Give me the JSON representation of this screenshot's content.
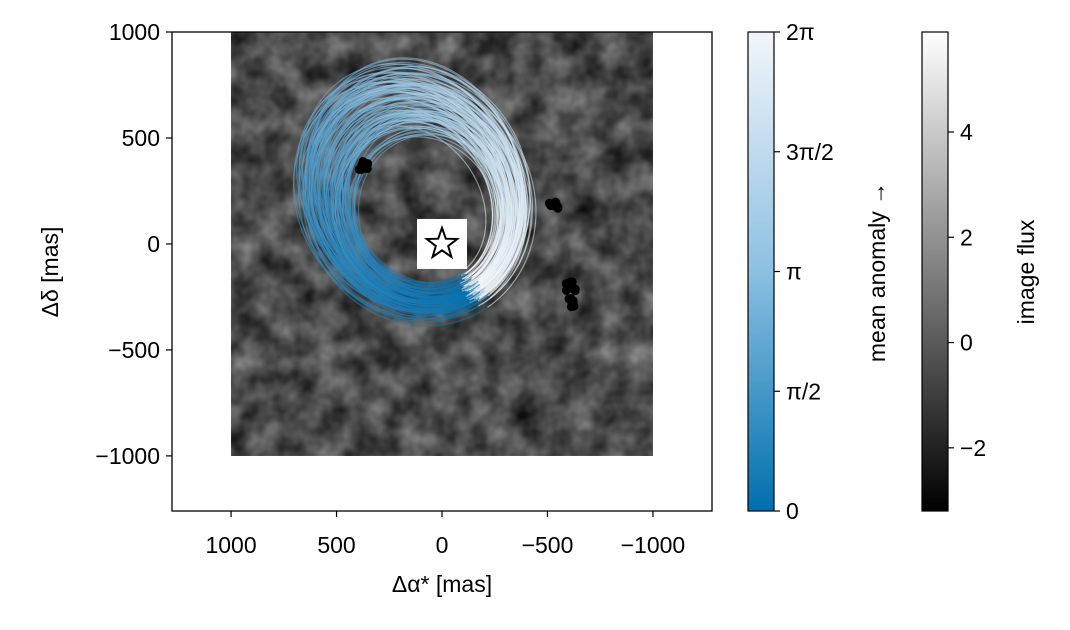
{
  "chart_data": {
    "type": "scatter",
    "xlabel": "Δα* [mas]",
    "ylabel": "Δδ [mas]",
    "x_reversed": true,
    "xlim": [
      1280,
      -1280
    ],
    "ylim": [
      -1260,
      1000
    ],
    "x_ticks": [
      {
        "value": 1000,
        "label": "1000"
      },
      {
        "value": 500,
        "label": "500"
      },
      {
        "value": 0,
        "label": "0"
      },
      {
        "value": -500,
        "label": "−500"
      },
      {
        "value": -1000,
        "label": "−1000"
      }
    ],
    "y_ticks": [
      {
        "value": 1000,
        "label": "1000"
      },
      {
        "value": 500,
        "label": "500"
      },
      {
        "value": 0,
        "label": "0"
      },
      {
        "value": -500,
        "label": "−500"
      },
      {
        "value": -1000,
        "label": "−1000"
      }
    ],
    "image_extent": {
      "x": [
        1000,
        -1000
      ],
      "y": [
        -1000,
        1000
      ]
    },
    "star": {
      "x": 0,
      "y": 0
    },
    "orbit_colormap": {
      "low": "#0a72b0",
      "mid": "#7fb7dc",
      "high": "#f5f8fb"
    },
    "orbits_reference": {
      "a": 420,
      "e": 0.45,
      "focus": [
        0,
        0
      ],
      "periapsis_angle_deg": -118,
      "count": 120
    },
    "observation_clusters": [
      {
        "x": 375,
        "y": 370
      },
      {
        "x": -525,
        "y": 185
      },
      {
        "x": -610,
        "y": -200
      },
      {
        "x": -615,
        "y": -275
      }
    ],
    "colorbars": [
      {
        "label": "mean anomaly →",
        "colormap": [
          "#006fad",
          "#8cc0e2",
          "#f2f6fa"
        ],
        "range": [
          0,
          6.2832
        ],
        "ticks": [
          {
            "value": 0,
            "label": "0"
          },
          {
            "value": 1.5708,
            "label": "π/2"
          },
          {
            "value": 3.1416,
            "label": "π"
          },
          {
            "value": 4.7124,
            "label": "3π/2"
          },
          {
            "value": 6.2832,
            "label": "2π"
          }
        ]
      },
      {
        "label": "image flux",
        "colormap": [
          "#000000",
          "#ffffff"
        ],
        "range": [
          -3.2,
          5.9
        ],
        "ticks": [
          {
            "value": -2,
            "label": "−2"
          },
          {
            "value": 0,
            "label": "0"
          },
          {
            "value": 2,
            "label": "2"
          },
          {
            "value": 4,
            "label": "4"
          }
        ]
      }
    ]
  }
}
